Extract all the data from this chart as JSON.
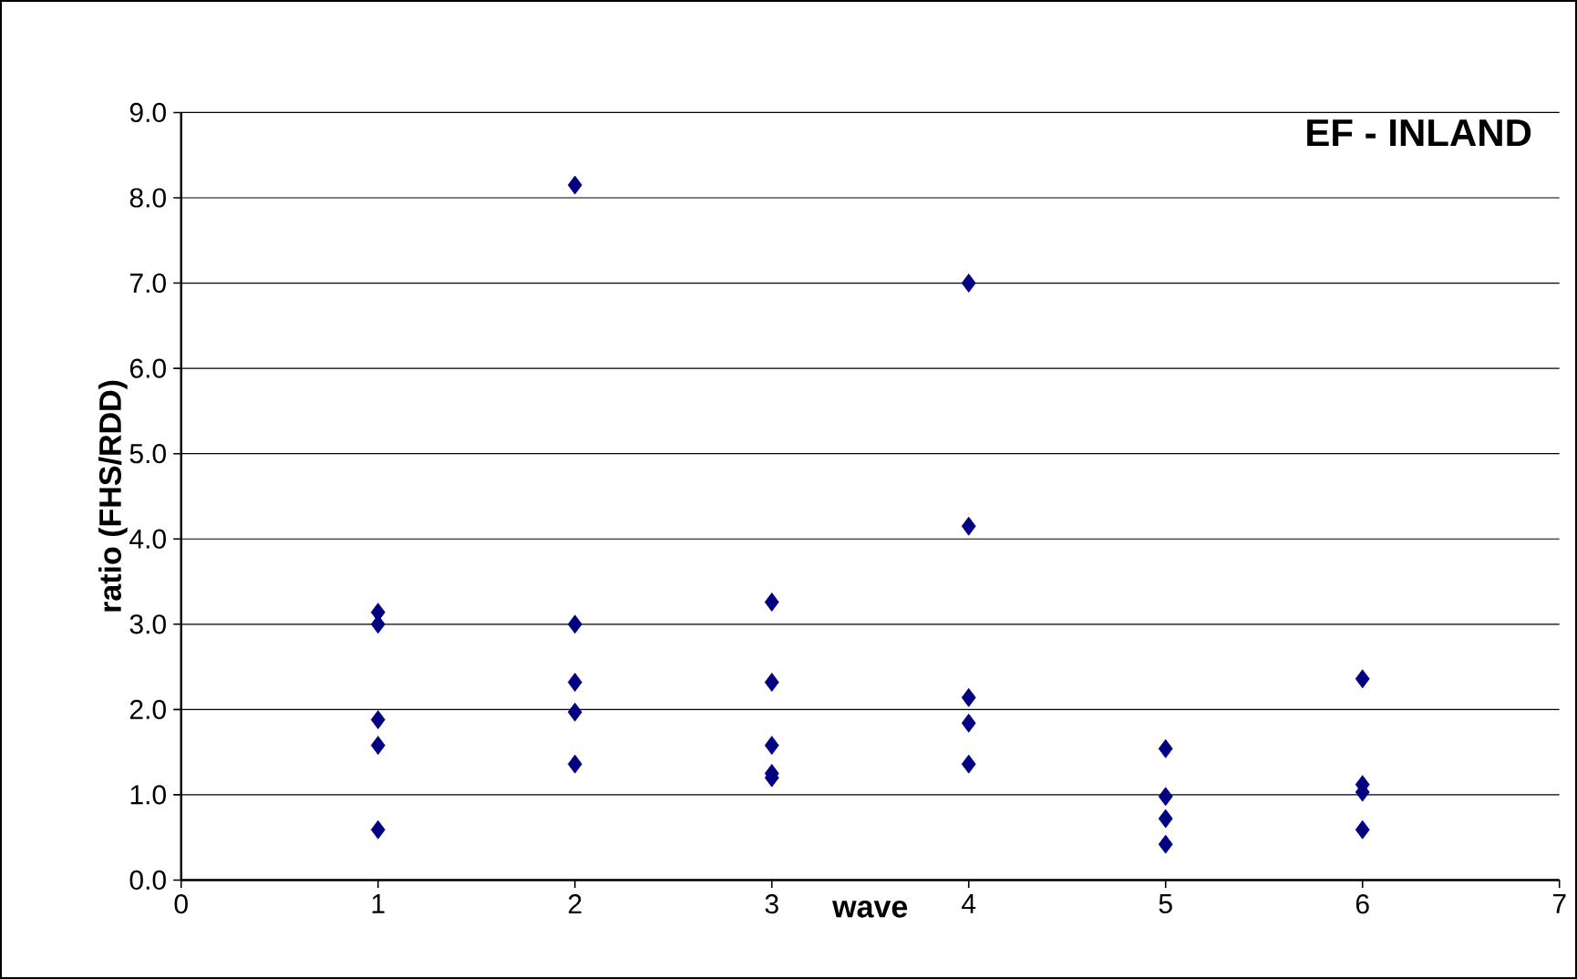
{
  "chart_data": {
    "type": "scatter",
    "title": "EF - INLAND",
    "xlabel": "wave",
    "ylabel": "ratio (FHS/RDD)",
    "series": [
      {
        "color": "#000080",
        "x": [
          1,
          1,
          1,
          1,
          1,
          2,
          2,
          2,
          2,
          2,
          3,
          3,
          3,
          3,
          3,
          4,
          4,
          4,
          4,
          4,
          5,
          5,
          5,
          5,
          6,
          6,
          6,
          6
        ],
        "values": [
          3.14,
          3.0,
          1.88,
          1.58,
          0.59,
          8.15,
          3.0,
          2.32,
          1.97,
          1.36,
          3.26,
          2.32,
          1.58,
          1.25,
          1.2,
          7.0,
          4.15,
          2.14,
          1.84,
          1.36,
          1.54,
          0.98,
          0.72,
          0.42,
          2.36,
          1.12,
          1.03,
          0.59
        ]
      }
    ],
    "xlim": [
      0,
      7
    ],
    "xticks": [
      0,
      1,
      2,
      3,
      4,
      5,
      6,
      7
    ],
    "ylim": [
      0,
      9
    ],
    "yticks": [
      {
        "value": 0,
        "label": "0.0"
      },
      {
        "value": 1,
        "label": "1.0"
      },
      {
        "value": 2,
        "label": "2.0"
      },
      {
        "value": 3,
        "label": "3.0"
      },
      {
        "value": 4,
        "label": "4.0"
      },
      {
        "value": 5,
        "label": "5.0"
      },
      {
        "value": 6,
        "label": "6.0"
      },
      {
        "value": 7,
        "label": "7.0"
      },
      {
        "value": 8,
        "label": "8.0"
      },
      {
        "value": 9,
        "label": "9.0"
      }
    ],
    "grid": "y",
    "marker": "diamond"
  }
}
